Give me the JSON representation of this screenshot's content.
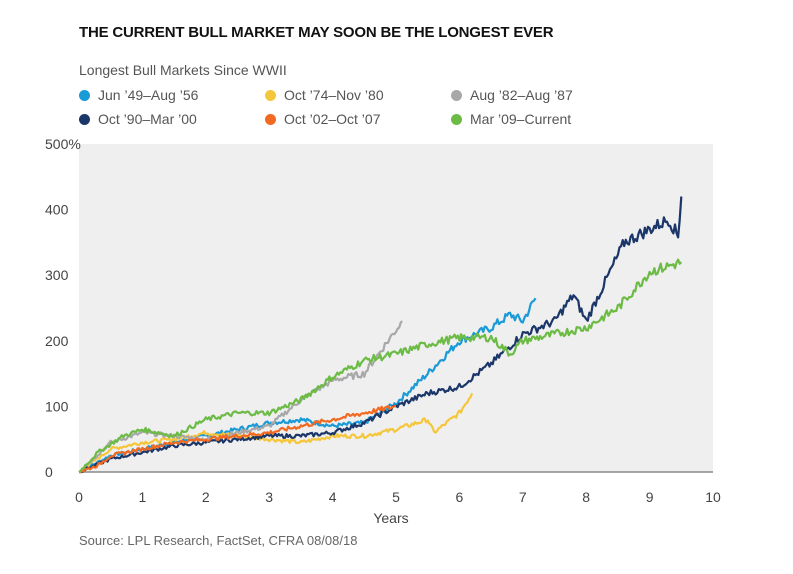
{
  "chart_data": {
    "type": "line",
    "title": "THE CURRENT BULL MARKET MAY SOON BE THE LONGEST EVER",
    "subtitle": "Longest Bull Markets Since WWII",
    "xlabel": "Years",
    "ylabel": "",
    "xlim": [
      0,
      10
    ],
    "ylim": [
      0,
      500
    ],
    "xticks": [
      "0",
      "1",
      "2",
      "3",
      "4",
      "5",
      "6",
      "7",
      "8",
      "9",
      "10"
    ],
    "yticks": [
      "0",
      "100",
      "200",
      "300",
      "400",
      "500%"
    ],
    "legend_position": "top",
    "source": "Source: LPL Research, FactSet, CFRA   08/08/18",
    "series": [
      {
        "name": "Jun ’49–Aug ’56",
        "color": "#1a9ad6",
        "points": [
          [
            0,
            0
          ],
          [
            0.5,
            25
          ],
          [
            1,
            35
          ],
          [
            1.5,
            45
          ],
          [
            2,
            55
          ],
          [
            2.5,
            65
          ],
          [
            3,
            75
          ],
          [
            3.5,
            80
          ],
          [
            4,
            70
          ],
          [
            4.5,
            75
          ],
          [
            5,
            105
          ],
          [
            5.5,
            150
          ],
          [
            6,
            200
          ],
          [
            6.5,
            220
          ],
          [
            6.8,
            240
          ],
          [
            7,
            230
          ],
          [
            7.2,
            265
          ]
        ]
      },
      {
        "name": "Oct ’74–Nov ’80",
        "color": "#f5c63a",
        "points": [
          [
            0,
            0
          ],
          [
            0.5,
            35
          ],
          [
            1,
            45
          ],
          [
            1.5,
            50
          ],
          [
            2,
            60
          ],
          [
            2.5,
            55
          ],
          [
            3,
            50
          ],
          [
            3.5,
            45
          ],
          [
            4,
            55
          ],
          [
            4.5,
            55
          ],
          [
            5,
            65
          ],
          [
            5.5,
            80
          ],
          [
            5.6,
            60
          ],
          [
            6,
            90
          ],
          [
            6.2,
            120
          ]
        ]
      },
      {
        "name": "Aug ’82–Aug ’87",
        "color": "#a8a8a8",
        "points": [
          [
            0,
            0
          ],
          [
            0.5,
            45
          ],
          [
            1,
            60
          ],
          [
            1.5,
            55
          ],
          [
            2,
            50
          ],
          [
            2.5,
            60
          ],
          [
            3,
            70
          ],
          [
            3.5,
            110
          ],
          [
            4,
            140
          ],
          [
            4.5,
            150
          ],
          [
            4.8,
            190
          ],
          [
            5.1,
            230
          ]
        ]
      },
      {
        "name": "Oct ’90–Mar ’00",
        "color": "#1b3668",
        "points": [
          [
            0,
            0
          ],
          [
            0.5,
            20
          ],
          [
            1,
            30
          ],
          [
            1.5,
            40
          ],
          [
            2,
            45
          ],
          [
            2.5,
            50
          ],
          [
            3,
            55
          ],
          [
            3.5,
            55
          ],
          [
            4,
            60
          ],
          [
            4.5,
            75
          ],
          [
            5,
            100
          ],
          [
            5.5,
            120
          ],
          [
            6,
            130
          ],
          [
            6.5,
            165
          ],
          [
            7,
            210
          ],
          [
            7.5,
            230
          ],
          [
            7.8,
            270
          ],
          [
            8,
            230
          ],
          [
            8.3,
            290
          ],
          [
            8.6,
            350
          ],
          [
            9,
            370
          ],
          [
            9.3,
            385
          ],
          [
            9.45,
            360
          ],
          [
            9.5,
            420
          ]
        ]
      },
      {
        "name": "Oct ’02–Oct ’07",
        "color": "#f26a21",
        "points": [
          [
            0,
            0
          ],
          [
            0.3,
            10
          ],
          [
            0.5,
            25
          ],
          [
            1,
            35
          ],
          [
            1.5,
            45
          ],
          [
            2,
            50
          ],
          [
            2.5,
            55
          ],
          [
            3,
            60
          ],
          [
            3.5,
            70
          ],
          [
            4,
            80
          ],
          [
            4.5,
            90
          ],
          [
            5,
            100
          ]
        ]
      },
      {
        "name": "Mar ’09–Current",
        "color": "#6cbb45",
        "points": [
          [
            0,
            0
          ],
          [
            0.3,
            30
          ],
          [
            0.7,
            55
          ],
          [
            1,
            65
          ],
          [
            1.5,
            55
          ],
          [
            2,
            80
          ],
          [
            2.5,
            90
          ],
          [
            3,
            90
          ],
          [
            3.5,
            110
          ],
          [
            4,
            145
          ],
          [
            4.5,
            170
          ],
          [
            5,
            180
          ],
          [
            5.5,
            195
          ],
          [
            6,
            205
          ],
          [
            6.5,
            205
          ],
          [
            6.8,
            180
          ],
          [
            7,
            200
          ],
          [
            7.5,
            210
          ],
          [
            8,
            220
          ],
          [
            8.5,
            250
          ],
          [
            9,
            305
          ],
          [
            9.5,
            320
          ]
        ]
      }
    ]
  }
}
